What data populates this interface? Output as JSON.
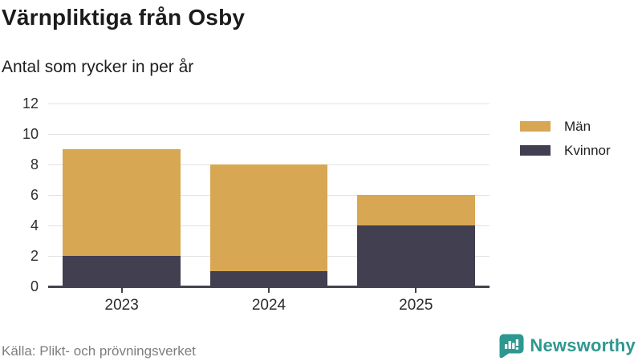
{
  "title": "Värnpliktiga från Osby",
  "subtitle": "Antal som rycker in per år",
  "source": "Källa: Plikt- och prövningsverket",
  "brand": {
    "name": "Newsworthy",
    "color": "#2e9890"
  },
  "colors": {
    "man": "#d7a754",
    "kvinnor": "#413f50",
    "gridline": "#e2e2e2",
    "axis": "#45434e",
    "text": "#1b1b1b",
    "muted": "#7e7e7e"
  },
  "legend": [
    {
      "label": "Män",
      "color": "#d7a754"
    },
    {
      "label": "Kvinnor",
      "color": "#413f50"
    }
  ],
  "chart_data": {
    "type": "bar",
    "stacked": true,
    "title": "Värnpliktiga från Osby",
    "subtitle": "Antal som rycker in per år",
    "categories": [
      "2023",
      "2024",
      "2025"
    ],
    "series": [
      {
        "name": "Kvinnor",
        "color": "#413f50",
        "values": [
          2,
          1,
          4
        ]
      },
      {
        "name": "Män",
        "color": "#d7a754",
        "values": [
          7,
          7,
          2
        ]
      }
    ],
    "totals": [
      9,
      8,
      6
    ],
    "xlabel": "",
    "ylabel": "",
    "ylim": [
      0,
      12
    ],
    "yticks": [
      0,
      2,
      4,
      6,
      8,
      10,
      12
    ],
    "grid": true,
    "legend_position": "right",
    "source": "Källa: Plikt- och prövningsverket"
  }
}
